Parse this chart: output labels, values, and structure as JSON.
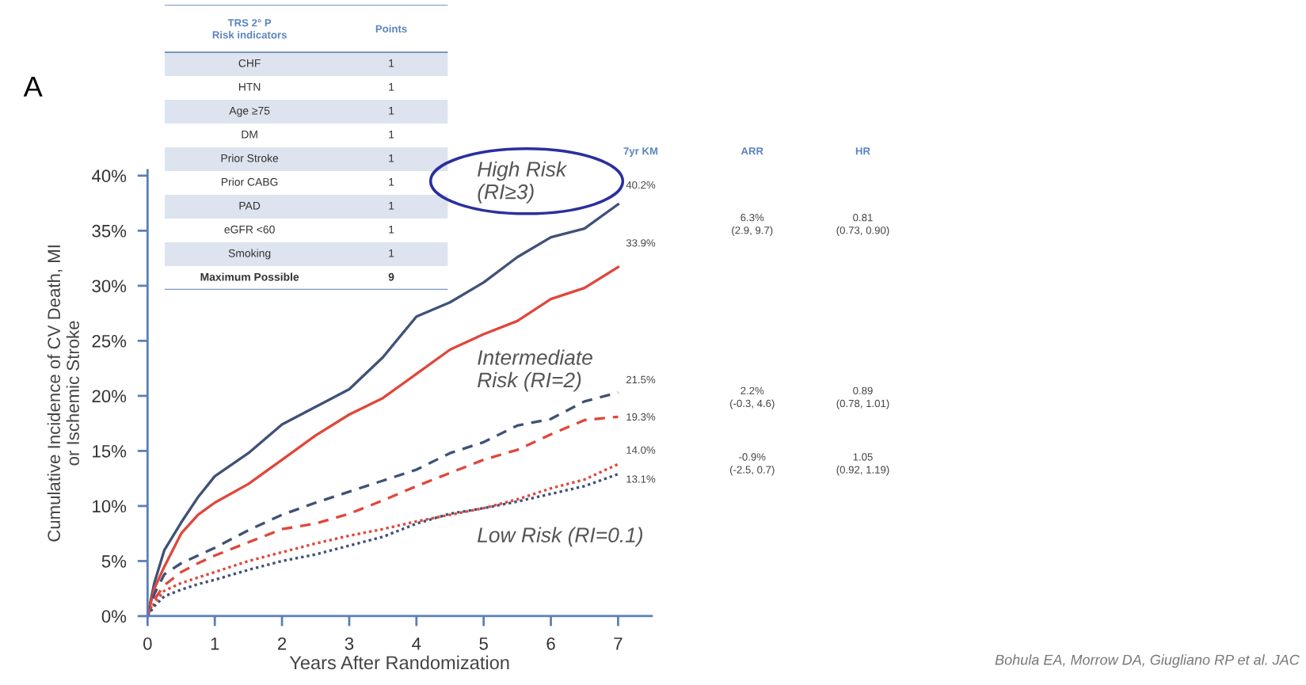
{
  "chart_data": [
    {
      "type": "line",
      "xlabel": "Years After Randomization",
      "ylabel": "Cumulative Incidence of CV Death, MI\nor Ischemic Stroke",
      "x": [
        0,
        0.1,
        0.25,
        0.5,
        0.75,
        1,
        1.5,
        2,
        2.5,
        3,
        3.5,
        4,
        4.5,
        5,
        5.5,
        6,
        6.5,
        7
      ],
      "series": [
        {
          "color": "#3f5277",
          "line_style": "solid",
          "values": [
            0,
            3,
            6,
            8.5,
            10.8,
            12.7,
            14.8,
            17.4,
            19,
            20.6,
            23.5,
            27.2,
            28.5,
            30.3,
            32.6,
            34.4,
            35.2,
            37.4
          ]
        },
        {
          "color": "#e0473c",
          "line_style": "solid",
          "values": [
            0,
            2.5,
            4.5,
            7.5,
            9.2,
            10.3,
            12,
            14.2,
            16.4,
            18.3,
            19.8,
            22,
            24.2,
            25.6,
            26.8,
            28.8,
            29.8,
            31.7
          ]
        },
        {
          "color": "#3f5277",
          "line_style": "dashed",
          "values": [
            0,
            2,
            3.8,
            4.8,
            5.5,
            6.2,
            7.8,
            9.2,
            10.3,
            11.3,
            12.3,
            13.3,
            14.8,
            15.8,
            17.3,
            17.9,
            19.5,
            20.3
          ]
        },
        {
          "color": "#e0473c",
          "line_style": "dashed",
          "values": [
            0,
            1.5,
            2.8,
            4,
            4.8,
            5.5,
            6.7,
            7.9,
            8.4,
            9.3,
            10.5,
            11.8,
            13,
            14.2,
            15.1,
            16.5,
            17.8,
            18.1
          ]
        },
        {
          "color": "#e0473c",
          "line_style": "dotted",
          "values": [
            0,
            1.2,
            2.3,
            3,
            3.5,
            4,
            5,
            5.8,
            6.6,
            7.3,
            7.9,
            8.6,
            9.2,
            9.8,
            10.6,
            11.6,
            12.4,
            13.8
          ]
        },
        {
          "color": "#3f5277",
          "line_style": "dotted",
          "values": [
            0,
            0.9,
            1.8,
            2.4,
            2.9,
            3.3,
            4.2,
            5,
            5.6,
            6.4,
            7.2,
            8.4,
            9.3,
            9.8,
            10.4,
            11.1,
            11.8,
            12.9
          ]
        }
      ],
      "xlim": [
        0,
        7.5
      ],
      "ylim": [
        0,
        40.5
      ],
      "xticks": [
        0,
        1,
        2,
        3,
        4,
        5,
        6,
        7
      ],
      "yticks": [
        {
          "value": 0,
          "label": "0%"
        },
        {
          "value": 5,
          "label": "5%"
        },
        {
          "value": 10,
          "label": "10%"
        },
        {
          "value": 15,
          "label": "15%"
        },
        {
          "value": 20,
          "label": "20%"
        },
        {
          "value": 25,
          "label": "25%"
        },
        {
          "value": 30,
          "label": "30%"
        },
        {
          "value": 35,
          "label": "35%"
        },
        {
          "value": 40,
          "label": "40%"
        }
      ],
      "grid": false,
      "annotations": [
        "A",
        "High Risk\n(RI≥3)",
        "Intermediate\nRisk (RI=2)",
        "Low Risk (RI=0.1)",
        "Bohula EA, Morrow DA, Giugliano RP et al. JAC"
      ]
    },
    {
      "type": "other",
      "annotations": [
        "TRS 2° P\nRisk indicators",
        "Points",
        "CHF",
        "1",
        "HTN",
        "1",
        "Age ≥75",
        "1",
        "DM",
        "1",
        "Prior Stroke",
        "1",
        "Prior CABG",
        "1",
        "PAD",
        "1",
        "eGFR <60",
        "1",
        "Smoking",
        "1",
        "Maximum Possible",
        "9"
      ]
    },
    {
      "type": "other",
      "annotations": [
        "7yr KM",
        "ARR",
        "HR",
        "40.2%",
        "33.9%",
        "6.3%\n(2.9, 9.7)",
        "0.81\n(0.73, 0.90)",
        "21.5%",
        "19.3%",
        "2.2%\n(-0.3, 4.6)",
        "0.89\n(0.78, 1.01)",
        "14.0%",
        "13.1%",
        "-0.9%\n(-2.5, 0.7)",
        "1.05\n(0.92, 1.19)"
      ]
    }
  ]
}
